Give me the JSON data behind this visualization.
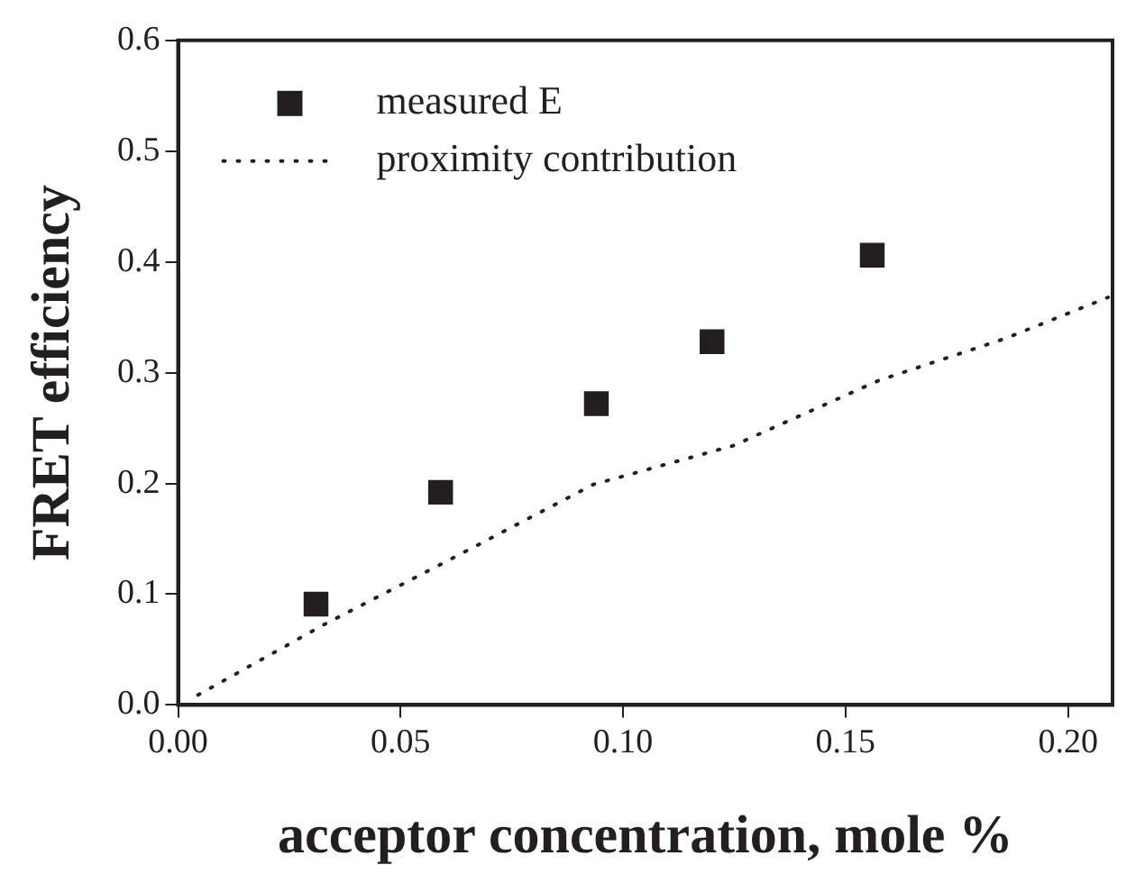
{
  "chart_data": {
    "type": "scatter",
    "xlabel": "acceptor concentration, mole %",
    "ylabel": "FRET efficiency",
    "xlim": [
      0,
      0.21
    ],
    "xticks": [
      {
        "value": 0,
        "label": "0.00"
      },
      0.05,
      {
        "value": 0.1,
        "label": "0.10"
      },
      0.15,
      {
        "value": 0.2,
        "label": "0.20"
      }
    ],
    "ylim": [
      0,
      0.6
    ],
    "yticks": [
      {
        "value": 0,
        "label": "0.0"
      },
      0.1,
      0.2,
      0.3,
      0.4,
      0.5,
      0.6
    ],
    "grid": false,
    "legend": "top left",
    "series": [
      {
        "name": "measured E",
        "marker": "square",
        "color": "#231f20",
        "x": [
          0.031,
          0.059,
          0.094,
          0.12,
          0.156
        ],
        "values": [
          0.091,
          0.192,
          0.272,
          0.328,
          0.406
        ]
      },
      {
        "name": "proximity contribution",
        "type": "line",
        "marker": "none",
        "line_style": "dotted",
        "color": "#231f20",
        "x": [
          0.0045,
          0.033,
          0.0605,
          0.0933,
          0.1247,
          0.1575,
          0.186,
          0.209
        ],
        "values": [
          0.009,
          0.073,
          0.13,
          0.199,
          0.234,
          0.293,
          0.331,
          0.368
        ]
      }
    ]
  }
}
